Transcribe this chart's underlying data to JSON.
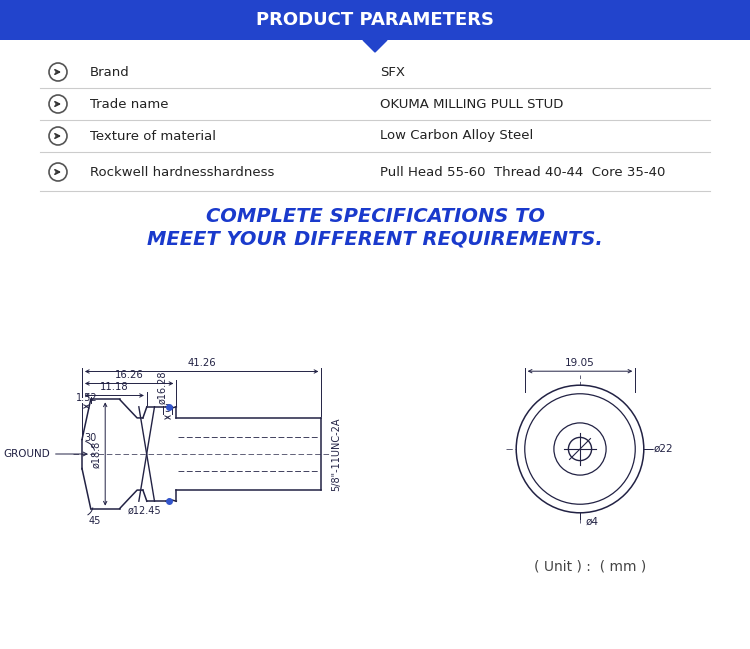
{
  "bg_color": "#ffffff",
  "header_bg": "#2244cc",
  "header_text": "PRODUCT PARAMETERS",
  "header_text_color": "#ffffff",
  "rows": [
    {
      "label": "Brand",
      "value": "SFX"
    },
    {
      "label": "Trade name",
      "value": "OKUMA MILLING PULL STUD"
    },
    {
      "label": "Texture of material",
      "value": "Low Carbon Alloy Steel"
    },
    {
      "label": "Rockwell hardnesshardness",
      "value": "Pull Head 55-60  Thread 40-44  Core 35-40"
    }
  ],
  "divider_color": "#cccccc",
  "spec_line1": "COMPLETE SPECIFICATIONS TO",
  "spec_line2": "MEEET YOUR DIFFERENT REQUIREMENTS.",
  "spec_text_color": "#1a3acc",
  "unit_text": "( Unit ) :  ( mm )",
  "dim_color": "#222244",
  "lc": "#222244",
  "blue_dot_color": "#3355cc",
  "row_label_color": "#222222",
  "row_value_color": "#222222"
}
